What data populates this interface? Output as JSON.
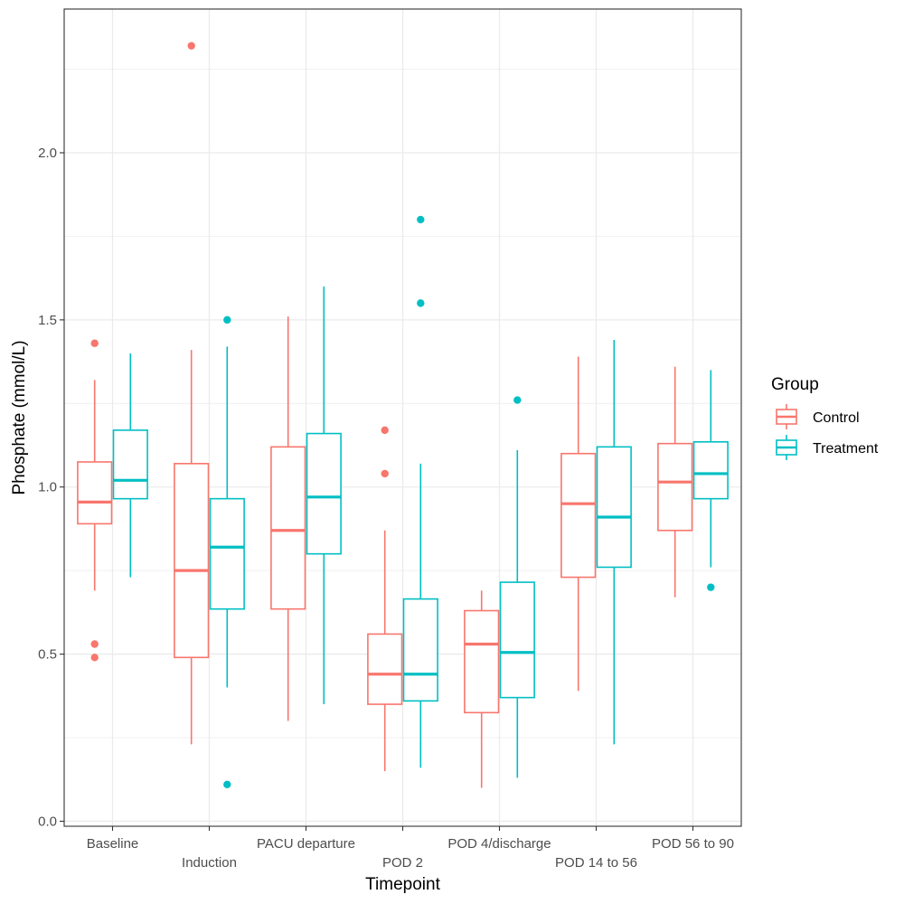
{
  "chart_data": {
    "type": "boxplot",
    "title": "",
    "xlabel": "Timepoint",
    "ylabel": "Phosphate (mmol/L)",
    "ylim": [
      -0.015,
      2.43
    ],
    "yticks": [
      0.0,
      0.5,
      1.0,
      1.5,
      2.0
    ],
    "ytick_labels": [
      "0.0",
      "0.5",
      "1.0",
      "1.5",
      "2.0"
    ],
    "grid": true,
    "categories": [
      "Baseline",
      "Induction",
      "PACU departure",
      "POD 2",
      "POD 4/discharge",
      "POD 14 to 56",
      "POD 56 to 90"
    ],
    "legend": {
      "title": "Group",
      "position": "right"
    },
    "series": [
      {
        "name": "Control",
        "color": "#F8766D",
        "boxes": [
          {
            "whisker_low": 0.69,
            "q1": 0.89,
            "median": 0.955,
            "q3": 1.075,
            "whisker_high": 1.32,
            "outliers": [
              1.43,
              0.53,
              0.49
            ]
          },
          {
            "whisker_low": 0.23,
            "q1": 0.49,
            "median": 0.75,
            "q3": 1.07,
            "whisker_high": 1.41,
            "outliers": [
              2.32
            ]
          },
          {
            "whisker_low": 0.3,
            "q1": 0.635,
            "median": 0.87,
            "q3": 1.12,
            "whisker_high": 1.51,
            "outliers": []
          },
          {
            "whisker_low": 0.15,
            "q1": 0.35,
            "median": 0.44,
            "q3": 0.56,
            "whisker_high": 0.87,
            "outliers": [
              1.17,
              1.04
            ]
          },
          {
            "whisker_low": 0.1,
            "q1": 0.325,
            "median": 0.53,
            "q3": 0.63,
            "whisker_high": 0.69,
            "outliers": []
          },
          {
            "whisker_low": 0.39,
            "q1": 0.73,
            "median": 0.95,
            "q3": 1.1,
            "whisker_high": 1.39,
            "outliers": []
          },
          {
            "whisker_low": 0.67,
            "q1": 0.87,
            "median": 1.015,
            "q3": 1.13,
            "whisker_high": 1.36,
            "outliers": []
          }
        ]
      },
      {
        "name": "Treatment",
        "color": "#00BFC4",
        "boxes": [
          {
            "whisker_low": 0.73,
            "q1": 0.965,
            "median": 1.02,
            "q3": 1.17,
            "whisker_high": 1.4,
            "outliers": []
          },
          {
            "whisker_low": 0.4,
            "q1": 0.635,
            "median": 0.82,
            "q3": 0.965,
            "whisker_high": 1.42,
            "outliers": [
              1.5,
              0.11
            ]
          },
          {
            "whisker_low": 0.35,
            "q1": 0.8,
            "median": 0.97,
            "q3": 1.16,
            "whisker_high": 1.6,
            "outliers": []
          },
          {
            "whisker_low": 0.16,
            "q1": 0.36,
            "median": 0.44,
            "q3": 0.665,
            "whisker_high": 1.07,
            "outliers": [
              1.8,
              1.55
            ]
          },
          {
            "whisker_low": 0.13,
            "q1": 0.37,
            "median": 0.505,
            "q3": 0.715,
            "whisker_high": 1.11,
            "outliers": [
              1.26
            ]
          },
          {
            "whisker_low": 0.23,
            "q1": 0.76,
            "median": 0.91,
            "q3": 1.12,
            "whisker_high": 1.44,
            "outliers": []
          },
          {
            "whisker_low": 0.76,
            "q1": 0.965,
            "median": 1.04,
            "q3": 1.135,
            "whisker_high": 1.35,
            "outliers": [
              0.7
            ]
          }
        ]
      }
    ]
  }
}
